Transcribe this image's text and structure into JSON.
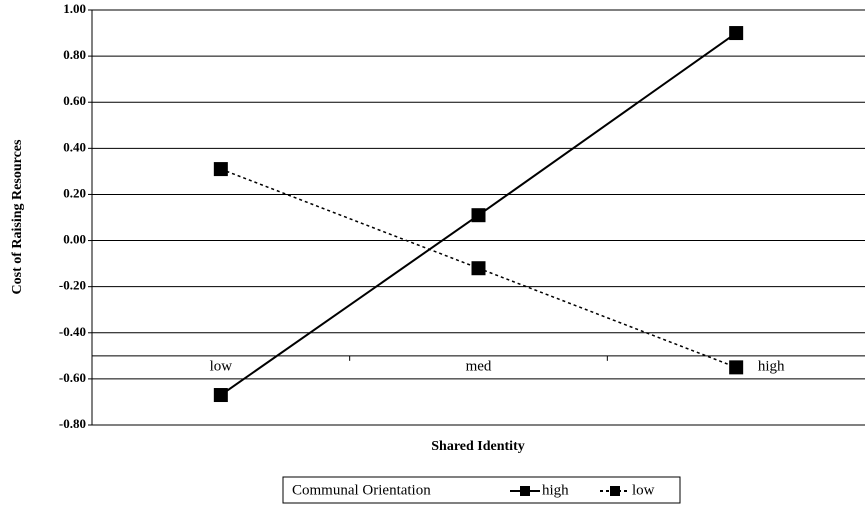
{
  "chart_data": {
    "type": "line",
    "ylabel": "Cost of Raising Resources",
    "xlabel": "Shared Identity",
    "legend_title": "Communal Orientation",
    "categories": [
      "low",
      "med",
      "high"
    ],
    "series": [
      {
        "name": "high",
        "color": "#000000",
        "dash": "solid",
        "values": [
          -0.67,
          0.11,
          0.9
        ]
      },
      {
        "name": "low",
        "color": "#000000",
        "dash": "dashed",
        "values": [
          0.31,
          -0.12,
          -0.55
        ]
      }
    ],
    "ylim": [
      -0.8,
      1.0
    ],
    "yticks": [
      {
        "value": 1.0,
        "label": "1.00"
      },
      {
        "value": 0.8,
        "label": "0.80"
      },
      {
        "value": 0.6,
        "label": "0.60"
      },
      {
        "value": 0.4,
        "label": "0.40"
      },
      {
        "value": 0.2,
        "label": "0.20"
      },
      {
        "value": 0.0,
        "label": "0.00"
      },
      {
        "value": -0.2,
        "label": "-0.20"
      },
      {
        "value": -0.4,
        "label": "-0.40"
      },
      {
        "value": -0.6,
        "label": "-0.60"
      },
      {
        "value": -0.8,
        "label": "-0.80"
      }
    ],
    "x_axis_at": -0.5,
    "grid": true,
    "legend": "bottom"
  }
}
